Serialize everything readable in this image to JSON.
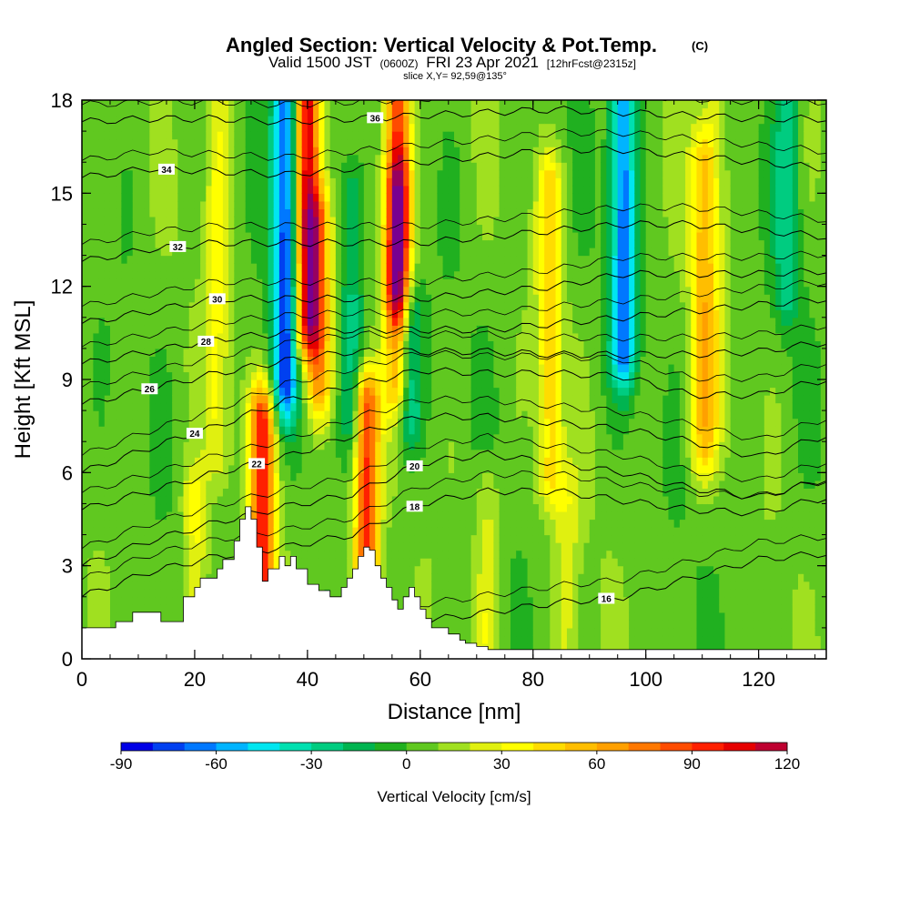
{
  "chart_data": {
    "type": "heatmap",
    "title": "Angled Section: Vertical Velocity & Pot.Temp.",
    "title_units": "(C)",
    "subtitle_main": "Valid 1500 JST",
    "subtitle_zulu": "(0600Z)",
    "subtitle_date": "FRI 23 Apr 2021",
    "subtitle_fcst": "[12hrFcst@2315z]",
    "slice_label": "slice X,Y= 92,59@135°",
    "xlabel": "Distance [nm]",
    "ylabel": "Height [Kft MSL]",
    "xlim": [
      0,
      132
    ],
    "ylim": [
      0,
      18
    ],
    "x_ticks": [
      0,
      20,
      40,
      60,
      80,
      100,
      120
    ],
    "y_ticks": [
      0,
      3,
      6,
      9,
      12,
      15,
      18
    ],
    "colorbar": {
      "label": "Vertical Velocity [cm/s]",
      "range": [
        -90,
        120
      ],
      "step": 10,
      "tick_values": [
        -90,
        -60,
        -30,
        0,
        30,
        60,
        90,
        120
      ],
      "tick_labels": [
        "-90",
        "-60",
        "-30",
        "0",
        "30",
        "60",
        "90",
        "120"
      ],
      "colors": [
        "#0000e6",
        "#0040f0",
        "#0078ff",
        "#00b4ff",
        "#00e6f0",
        "#00e0b0",
        "#00cc80",
        "#00b450",
        "#20b020",
        "#60c820",
        "#a0e020",
        "#e0f010",
        "#ffff00",
        "#ffdc00",
        "#ffbe00",
        "#ffa000",
        "#ff7800",
        "#ff4c00",
        "#ff2000",
        "#e60000",
        "#be0030",
        "#960060",
        "#780090",
        "#5a00b4"
      ]
    },
    "velocity_features": [
      {
        "x": 32,
        "zmin": 2.5,
        "zmax": 7.5,
        "value": 90
      },
      {
        "x": 36,
        "zmin": 9,
        "zmax": 18,
        "value": -80
      },
      {
        "x": 40,
        "zmin": 11,
        "zmax": 18,
        "value": 100
      },
      {
        "x": 42,
        "zmin": 9,
        "zmax": 14,
        "value": 60
      },
      {
        "x": 50.5,
        "zmin": 3,
        "zmax": 8,
        "value": 90
      },
      {
        "x": 58,
        "zmin": 8,
        "zmax": 11,
        "value": -40
      },
      {
        "x": 56,
        "zmin": 12,
        "zmax": 18,
        "value": 90
      },
      {
        "x": 56,
        "zmin": 9,
        "zmax": 15,
        "value": 50
      },
      {
        "x": 48,
        "zmin": 8,
        "zmax": 15,
        "value": -30
      },
      {
        "x": 96,
        "zmin": 10,
        "zmax": 18,
        "value": -70
      },
      {
        "x": 83,
        "zmin": 6,
        "zmax": 15,
        "value": 40
      },
      {
        "x": 110,
        "zmin": 7,
        "zmax": 16,
        "value": 40
      },
      {
        "x": 24,
        "zmin": 7,
        "zmax": 18,
        "value": 25
      },
      {
        "x": 20,
        "zmin": 1.5,
        "zmax": 5,
        "value": 30
      },
      {
        "x": 72,
        "zmin": 1,
        "zmax": 5,
        "value": 20
      },
      {
        "x": 86,
        "zmin": 0.5,
        "zmax": 5,
        "value": 20
      },
      {
        "x": 112,
        "zmin": 8,
        "zmax": 18,
        "value": 20
      },
      {
        "x": 125,
        "zmin": 12,
        "zmax": 18,
        "value": -30
      }
    ],
    "terrain": {
      "x": [
        0,
        5,
        6,
        9,
        13,
        14,
        17,
        18,
        20,
        21,
        24,
        25,
        27,
        28,
        29,
        30,
        31,
        32,
        33,
        34,
        35,
        36,
        37,
        38,
        40,
        42,
        44,
        46,
        47,
        48,
        49,
        50,
        51,
        52,
        53,
        54,
        55,
        56,
        57,
        58,
        59,
        60,
        61,
        62,
        63,
        65,
        67,
        68,
        70,
        72,
        132
      ],
      "z": [
        1,
        1,
        1.2,
        1.5,
        1.5,
        1.2,
        1.2,
        2,
        2.3,
        2.6,
        2.9,
        3.2,
        3.8,
        4.5,
        4.9,
        4.5,
        3.6,
        2.5,
        2.9,
        2.9,
        3.3,
        3.0,
        3.3,
        2.9,
        2.4,
        2.2,
        2.0,
        2.3,
        2.6,
        2.9,
        3.3,
        3.6,
        3.5,
        3.0,
        2.6,
        2.3,
        1.9,
        1.6,
        2.0,
        2.3,
        2.0,
        1.6,
        1.3,
        1.0,
        1.0,
        0.8,
        0.6,
        0.5,
        0.4,
        0.3,
        0.3
      ]
    },
    "isentropes": [
      {
        "theta": 16,
        "z": [
          -3.0,
          -3.0,
          -2.0,
          -1.0,
          0.0,
          1.2,
          1.5,
          1.8,
          2.0,
          2.6,
          3.2,
          3.4
        ],
        "label_x": 93
      },
      {
        "theta": 18,
        "z": [
          2.0,
          2.8,
          3.3,
          3.6,
          4.0,
          5.0,
          5.4,
          5.4,
          5.1,
          4.8,
          4.7,
          5.2
        ],
        "label_x": 59
      },
      {
        "theta": 20,
        "z": [
          3.0,
          3.8,
          4.4,
          4.9,
          5.3,
          6.3,
          6.6,
          6.3,
          6.0,
          5.5,
          5.2,
          5.8
        ],
        "label_x": 59
      },
      {
        "theta": 22,
        "z": [
          4.8,
          5.4,
          6.0,
          6.5,
          7.2,
          7.8,
          7.8,
          7.6,
          7.4,
          7.0,
          6.5,
          7.2
        ],
        "label_x": 31
      },
      {
        "theta": 24,
        "z": [
          6.0,
          6.8,
          7.5,
          8.3,
          8.8,
          9.3,
          9.2,
          9.2,
          9.1,
          8.5,
          8.5,
          9.0
        ],
        "label_x": 20
      },
      {
        "theta": 26,
        "z": [
          8.2,
          8.7,
          9.2,
          9.6,
          9.9,
          9.9,
          9.9,
          9.8,
          9.8,
          9.8,
          9.9,
          10.2
        ],
        "label_x": 12
      },
      {
        "theta": 28,
        "z": [
          9.5,
          9.9,
          10.3,
          10.5,
          10.6,
          10.6,
          10.6,
          10.8,
          11.0,
          11.2,
          11.4,
          11.6
        ],
        "label_x": 22
      },
      {
        "theta": 30,
        "z": [
          10.8,
          11.2,
          11.6,
          11.6,
          11.6,
          11.6,
          11.8,
          12.0,
          12.4,
          12.4,
          12.4,
          12.5
        ],
        "label_x": 24
      },
      {
        "theta": 32,
        "z": [
          12.8,
          13.2,
          13.4,
          13.4,
          13.4,
          13.4,
          13.6,
          13.8,
          14.0,
          14.0,
          13.8,
          13.6
        ],
        "label_x": 17
      },
      {
        "theta": 34,
        "z": [
          15.5,
          15.8,
          15.7,
          15.6,
          15.8,
          16.0,
          16.2,
          16.4,
          16.4,
          16.2,
          16.0,
          15.8
        ],
        "label_x": 15
      },
      {
        "theta": 36,
        "z": [
          17.3,
          17.4,
          17.4,
          17.3,
          17.4,
          17.5,
          17.6,
          17.7,
          17.6,
          17.5,
          17.4,
          17.4
        ],
        "label_x": 52
      }
    ],
    "isentrope_x": [
      0,
      12,
      24,
      36,
      48,
      60,
      72,
      84,
      96,
      108,
      120,
      132
    ]
  }
}
